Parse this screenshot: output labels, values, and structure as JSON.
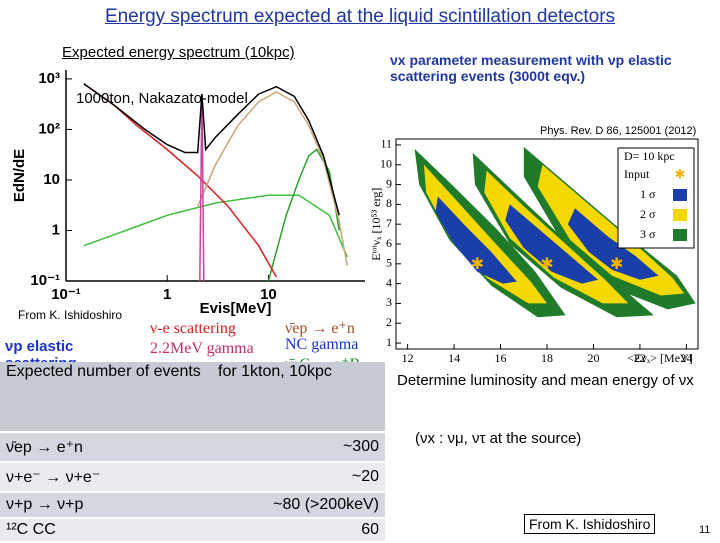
{
  "slide": {
    "title": "Energy spectrum expected at the liquid scintillation detectors",
    "credit_left": "From K. Ishidoshiro",
    "vp_label": "νp elastic scattering",
    "ann_ve": "ν-e scattering",
    "ann_gamma": "2.2MeV gamma",
    "ann_vec": "νeC → e⁻N",
    "ann_ibd": "ν̄ep → e⁺n",
    "ann_nc": "NC gamma",
    "ann_vebarc": "ν̄eC → e⁺B",
    "determine": "Determine luminosity and mean energy of νx",
    "source_note": "(νx : νμ, ντ at the source)",
    "credit_right": "From K. Ishidoshiro",
    "page": "11"
  },
  "table": {
    "header": [
      "Expected number of events",
      "for 1kton, 10kpc"
    ],
    "rows": [
      [
        "ν̄ep → e⁺n",
        "~300"
      ],
      [
        "ν+e⁻ → ν+e⁻",
        "~20"
      ],
      [
        "ν+p → ν+p",
        "~80 (>200keV)"
      ],
      [
        "¹²C CC",
        "60"
      ]
    ]
  },
  "chart_data": [
    {
      "type": "line",
      "title": "Expected energy spectrum (10kpc)",
      "annotation": "1000ton, Nakazato-model",
      "x_label": "Evis[MeV]",
      "y_label": "EdN/dE",
      "xscale": "log",
      "yscale": "log",
      "xlim": [
        0.1,
        90
      ],
      "ylim": [
        0.1,
        1500
      ],
      "xticks": [
        {
          "value": 0.1,
          "label": "10⁻¹"
        },
        1,
        10
      ],
      "yticks": [
        {
          "value": 0.1,
          "label": "10⁻¹"
        },
        1,
        10,
        {
          "value": 100,
          "label": "10²"
        },
        {
          "value": 1000,
          "label": "10³"
        }
      ],
      "series": [
        {
          "color": "#3fbf3f",
          "x": [
            0.15,
            0.5,
            1,
            3,
            10,
            20,
            40,
            60
          ],
          "values": [
            0.5,
            1.2,
            2,
            3.5,
            5,
            5,
            2,
            0.3
          ]
        },
        {
          "color": "#2ca02c",
          "x": [
            10,
            15,
            20,
            25,
            30,
            40,
            50
          ],
          "values": [
            0.1,
            2,
            10,
            30,
            40,
            15,
            1
          ]
        },
        {
          "color": "#d62020",
          "x": [
            0.15,
            0.3,
            0.5,
            1,
            2,
            4,
            8,
            12
          ],
          "values": [
            800,
            300,
            120,
            40,
            12,
            3,
            0.5,
            0.12
          ]
        },
        {
          "color": "#c8a878",
          "x": [
            2,
            3,
            5,
            8,
            12,
            18,
            25,
            35,
            50,
            60
          ],
          "values": [
            3,
            20,
            120,
            350,
            550,
            350,
            120,
            25,
            1.5,
            0.2
          ]
        },
        {
          "color": "#d040a0",
          "x": [
            2.1,
            2.2,
            2.3
          ],
          "values": [
            0.1,
            500,
            0.1
          ]
        },
        {
          "color": "#000000",
          "x": [
            0.15,
            0.3,
            0.6,
            1,
            1.5,
            2,
            2.2,
            2.4,
            3,
            5,
            8,
            12,
            18,
            25,
            35,
            50
          ],
          "values": [
            800,
            300,
            100,
            50,
            35,
            35,
            500,
            40,
            70,
            200,
            500,
            700,
            450,
            150,
            30,
            2
          ]
        }
      ]
    },
    {
      "type": "contour",
      "title": "νx parameter measurement with νp elastic scattering events (3000t eqv.)",
      "source": "Phys. Rev. D 86, 125001 (2012)",
      "x_label": "<Eνₓ> [MeV]",
      "y_label": "Eᵗᵒᵗνₓ [10⁵³ erg]",
      "legend_title": "D= 10 kpc",
      "xlim": [
        11.5,
        24.5
      ],
      "ylim": [
        0.7,
        11.3
      ],
      "xticks": [
        12,
        14,
        16,
        18,
        20,
        22,
        24
      ],
      "yticks": [
        1,
        2,
        3,
        4,
        5,
        6,
        7,
        8,
        9,
        10,
        11
      ],
      "points": {
        "name": "Input",
        "color": "#f0b400",
        "x": [
          15,
          18,
          21
        ],
        "values": [
          5,
          5,
          5
        ]
      },
      "series": [
        {
          "name": "1 σ",
          "color": "#1a3fa8",
          "regions": [
            {
              "x": [
                13.3,
                14.5,
                15.6,
                16.7,
                16.1,
                15.0,
                14.0,
                13.2
              ],
              "values": [
                8.4,
                6.9,
                5.6,
                4.1,
                4.0,
                4.6,
                6.0,
                7.6
              ]
            },
            {
              "x": [
                16.4,
                17.8,
                19.0,
                20.2,
                19.5,
                18.2,
                17.0,
                16.2
              ],
              "values": [
                8.0,
                6.6,
                5.4,
                4.2,
                4.0,
                4.6,
                5.8,
                7.2
              ]
            },
            {
              "x": [
                19.2,
                20.6,
                21.8,
                22.8,
                22.0,
                20.8,
                19.8,
                18.9
              ],
              "values": [
                7.8,
                6.4,
                5.4,
                4.4,
                4.2,
                4.7,
                5.6,
                7.0
              ]
            }
          ]
        },
        {
          "name": "2 σ",
          "color": "#f4d800",
          "regions": [
            {
              "x": [
                12.7,
                14.1,
                15.8,
                17.3,
                18.0,
                17.2,
                15.4,
                13.8,
                12.8
              ],
              "values": [
                10.0,
                8.2,
                6.0,
                4.1,
                3.0,
                3.0,
                4.3,
                6.4,
                8.6
              ]
            },
            {
              "x": [
                15.4,
                17.0,
                18.8,
                20.5,
                21.5,
                20.4,
                18.3,
                16.4,
                15.3
              ],
              "values": [
                9.7,
                7.9,
                6.0,
                4.2,
                3.0,
                3.0,
                4.3,
                6.3,
                8.6
              ]
            },
            {
              "x": [
                17.8,
                19.8,
                21.8,
                23.4,
                23.9,
                22.9,
                20.8,
                19.0,
                17.6
              ],
              "values": [
                10.0,
                8.0,
                6.0,
                4.3,
                3.5,
                3.4,
                4.4,
                6.2,
                8.9
              ]
            }
          ]
        },
        {
          "name": "3 σ",
          "color": "#1f7a2a",
          "regions": [
            {
              "x": [
                12.3,
                13.9,
                15.8,
                17.5,
                18.8,
                17.6,
                15.6,
                13.8,
                12.5
              ],
              "values": [
                10.8,
                9.0,
                6.8,
                4.6,
                2.4,
                2.3,
                3.9,
                6.2,
                9.0
              ]
            },
            {
              "x": [
                14.8,
                16.6,
                18.6,
                20.6,
                22.6,
                21.0,
                18.6,
                16.4,
                14.9
              ],
              "values": [
                10.6,
                8.6,
                6.4,
                4.4,
                2.4,
                2.3,
                3.8,
                6.0,
                9.0
              ]
            },
            {
              "x": [
                17.0,
                19.4,
                21.6,
                23.6,
                24.4,
                23.2,
                20.8,
                18.8,
                17.0
              ],
              "values": [
                10.9,
                8.5,
                6.3,
                4.4,
                3.0,
                2.7,
                3.8,
                5.8,
                9.4
              ]
            }
          ]
        }
      ]
    }
  ]
}
